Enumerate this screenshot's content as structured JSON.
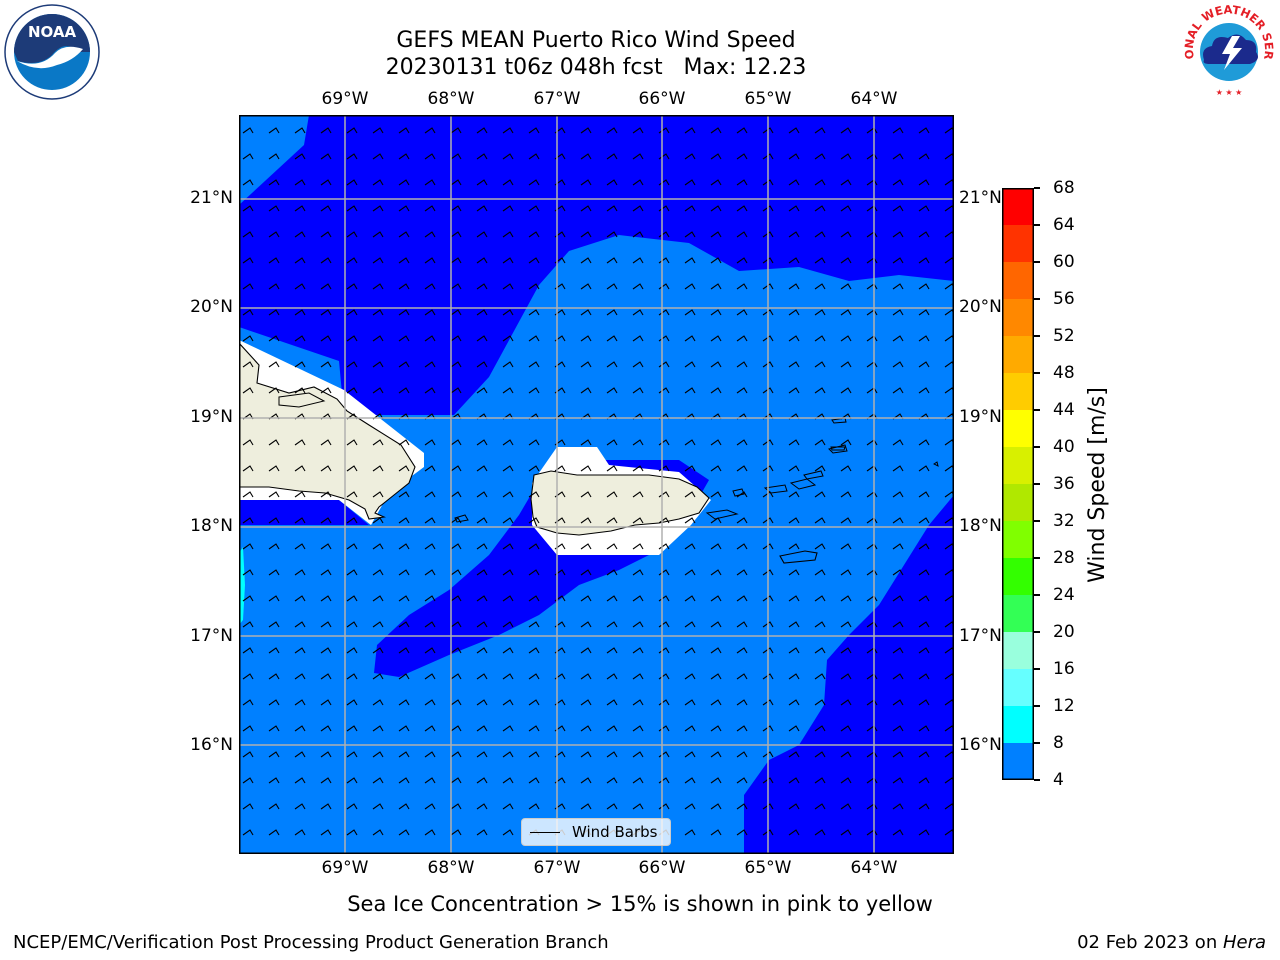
{
  "title": {
    "line1": "GEFS MEAN Puerto Rico Wind Speed",
    "line2": "20230131 t06z 048h fcst   Max: 12.23"
  },
  "map": {
    "lon_labels": [
      "69°W",
      "68°W",
      "67°W",
      "66°W",
      "65°W",
      "64°W"
    ],
    "lat_labels": [
      "21°N",
      "20°N",
      "19°N",
      "18°N",
      "17°N",
      "16°N"
    ],
    "colors": {
      "band_4_8": "#0000ff",
      "band_8_12": "#0080ff",
      "band_12_16": "#00ffff",
      "land": "#eeeedd",
      "gridline": "#b0b0b0"
    },
    "legend_label": "Wind Barbs"
  },
  "colorbar": {
    "label": "Wind Speed [m/s]",
    "ticks": [
      "68",
      "64",
      "60",
      "56",
      "52",
      "48",
      "44",
      "40",
      "36",
      "32",
      "28",
      "24",
      "20",
      "16",
      "12",
      "8",
      "4"
    ],
    "colors": [
      "#ff0000",
      "#ff3300",
      "#ff6600",
      "#ff8800",
      "#ffaa00",
      "#ffcc00",
      "#ffff00",
      "#d8f000",
      "#b0e800",
      "#80ff00",
      "#33ff00",
      "#33ff55",
      "#99ffdd",
      "#66ffff",
      "#00ffff",
      "#0080ff",
      "#0000ff"
    ]
  },
  "caption": "Sea Ice Concentration > 15% is shown in pink to yellow",
  "footer": {
    "left": "NCEP/EMC/Verification Post Processing Product Generation Branch",
    "right_date": "02 Feb 2023 on ",
    "right_host": "Hera"
  },
  "logos": {
    "noaa": "NOAA",
    "nws_arc": "NATIONAL WEATHER SERVICE"
  }
}
